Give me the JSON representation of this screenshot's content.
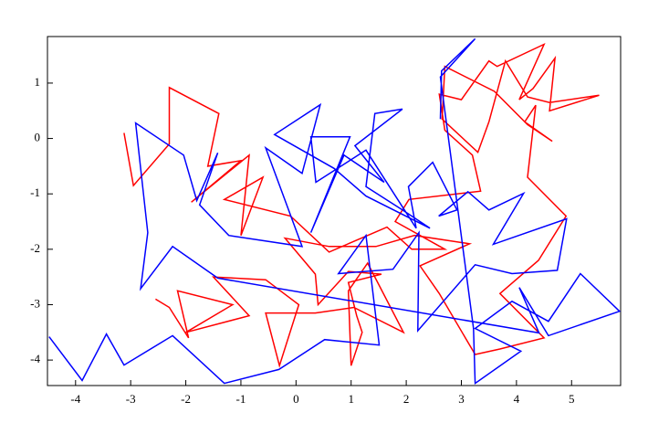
{
  "chart_data": {
    "type": "line",
    "xlim": [
      -4.51,
      5.89
    ],
    "ylim": [
      -4.46,
      1.84
    ],
    "xticks": [
      -4,
      -3,
      -2,
      -1,
      0,
      1,
      2,
      3,
      4,
      5
    ],
    "yticks": [
      -4,
      -3,
      -2,
      -1,
      0,
      1
    ],
    "grid": false,
    "series": [
      {
        "color": "#ff0000",
        "x": [
          -3.12,
          -2.95,
          -2.3,
          -2.3,
          -1.4,
          -1.6,
          -1.0,
          -1.9,
          -0.85,
          -1.0,
          -0.6,
          -1.3,
          -0.1,
          0.6,
          1.65,
          2.1,
          2.7,
          1.8,
          2.05,
          3.35,
          3.2,
          2.7,
          2.6,
          3.0,
          3.5,
          3.65,
          4.5,
          4.05,
          4.3,
          4.7,
          4.6,
          5.5,
          4.6,
          4.2,
          3.8,
          3.5,
          3.3,
          2.65,
          2.7,
          3.6,
          4.2,
          4.65,
          4.15,
          4.35,
          4.2,
          4.9,
          4.4,
          3.7,
          4.5,
          3.7,
          3.25,
          2.6,
          2.25,
          3.15,
          2.15,
          1.45,
          0.6,
          -0.2,
          0.35,
          0.4,
          0.95,
          1.55,
          0.95,
          1.1,
          1.2,
          1.0,
          0.95,
          1.3,
          1.95,
          1.05,
          0.35,
          -0.55,
          -0.3,
          0.05,
          -0.55,
          -1.5,
          -0.85,
          -2.0,
          -1.15,
          -2.15,
          -1.95,
          -2.3,
          -2.55
        ],
        "values": [
          0.1,
          -0.85,
          -0.1,
          0.92,
          0.45,
          -0.5,
          -0.4,
          -1.15,
          -0.3,
          -1.75,
          -0.7,
          -1.1,
          -1.4,
          -2.05,
          -1.6,
          -2.0,
          -2.0,
          -1.5,
          -1.1,
          -0.95,
          -0.3,
          0.15,
          0.8,
          0.7,
          1.4,
          1.3,
          1.7,
          0.7,
          0.9,
          1.45,
          0.5,
          0.78,
          0.65,
          0.75,
          1.4,
          0.3,
          -0.25,
          0.35,
          1.3,
          0.85,
          0.25,
          -0.05,
          0.3,
          0.6,
          -0.7,
          -1.4,
          -2.2,
          -2.8,
          -3.6,
          -3.8,
          -3.9,
          -2.8,
          -2.3,
          -1.9,
          -1.75,
          -1.95,
          -1.95,
          -1.8,
          -2.45,
          -3.0,
          -2.4,
          -2.45,
          -2.6,
          -3.2,
          -3.5,
          -4.1,
          -2.75,
          -2.25,
          -3.5,
          -3.05,
          -3.15,
          -3.15,
          -4.1,
          -3.0,
          -2.55,
          -2.5,
          -3.2,
          -3.5,
          -3.0,
          -2.75,
          -3.6,
          -3.05,
          -2.9
        ]
      },
      {
        "color": "#0000ff",
        "x": [
          -4.48,
          -3.88,
          -3.44,
          -3.12,
          -2.24,
          -1.3,
          -0.31,
          0.52,
          1.51,
          1.27,
          0.77,
          1.76,
          2.23,
          2.21,
          3.25,
          3.92,
          4.74,
          4.91,
          3.58,
          4.13,
          3.5,
          3.12,
          2.59,
          2.92,
          2.48,
          2.04,
          2.18,
          1.27,
          0.36,
          0.27,
          0.98,
          0.27,
          0.87,
          1.6,
          1.07,
          1.93,
          1.43,
          1.27,
          1.93,
          2.43,
          1.27,
          0.69,
          -0.39,
          0.44,
          0.11,
          -0.55,
          0.11,
          -1.22,
          -1.75,
          -1.42,
          -1.8,
          -2.04,
          -2.91,
          -2.69,
          -2.82,
          -2.24,
          -1.42,
          4.41,
          4.05,
          4.58,
          5.87,
          5.16,
          4.58,
          3.92,
          3.25,
          4.08,
          3.25,
          3.22,
          2.62,
          3.25,
          2.64,
          2.62
        ],
        "values": [
          -3.58,
          -4.37,
          -3.53,
          -4.09,
          -3.56,
          -4.42,
          -4.17,
          -3.63,
          -3.73,
          -1.75,
          -2.44,
          -2.36,
          -1.7,
          -3.47,
          -2.28,
          -2.44,
          -2.38,
          -1.45,
          -1.91,
          -0.99,
          -1.29,
          -0.96,
          -1.4,
          -1.29,
          -0.43,
          -0.87,
          -1.62,
          -0.21,
          -0.79,
          0.03,
          0.03,
          -1.7,
          -0.3,
          -0.79,
          -0.13,
          0.53,
          0.45,
          -0.87,
          -1.29,
          -1.62,
          -1.04,
          -0.54,
          0.07,
          0.61,
          -0.63,
          -0.17,
          -1.95,
          -1.75,
          -1.2,
          -0.26,
          -1.12,
          -0.3,
          0.28,
          -1.7,
          -2.71,
          -1.95,
          -2.52,
          -3.51,
          -2.69,
          -3.56,
          -3.12,
          -2.44,
          -3.3,
          -2.94,
          -3.43,
          -3.84,
          -4.42,
          -3.43,
          1.11,
          1.8,
          1.22,
          0.35
        ]
      }
    ]
  }
}
